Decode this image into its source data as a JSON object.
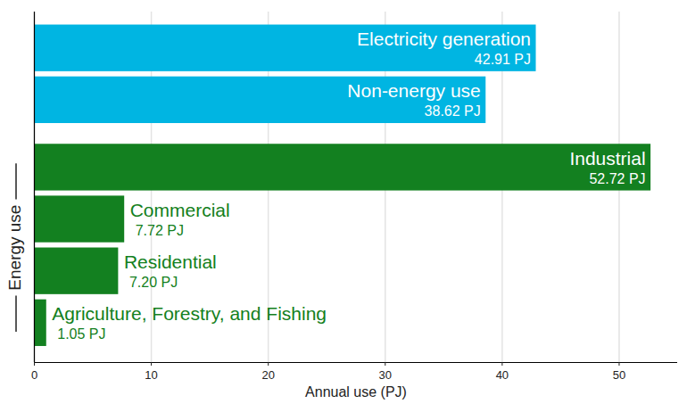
{
  "chart_data": {
    "type": "bar",
    "orientation": "horizontal",
    "categories": [
      "Electricity generation",
      "Non-energy use",
      "Industrial",
      "Commercial",
      "Residential",
      "Agriculture, Forestry, and Fishing"
    ],
    "values": [
      42.91,
      38.62,
      52.72,
      7.72,
      7.2,
      1.05
    ],
    "value_labels": [
      "42.91 PJ",
      "38.62 PJ",
      "52.72 PJ",
      "7.72 PJ",
      "7.20 PJ",
      "1.05 PJ"
    ],
    "colors": [
      "#00b5e2",
      "#00b5e2",
      "#138020",
      "#138020",
      "#138020",
      "#138020"
    ],
    "xlabel": "Annual use (PJ)",
    "xlim": [
      0,
      55
    ],
    "xticks": [
      0,
      10,
      20,
      30,
      40,
      50
    ],
    "grid": true,
    "data_labels": true,
    "tick_labels": "x",
    "annotations": [
      {
        "text": "Energy use",
        "categories": [
          "Industrial",
          "Commercial",
          "Residential",
          "Agriculture, Forestry, and Fishing"
        ]
      }
    ]
  }
}
